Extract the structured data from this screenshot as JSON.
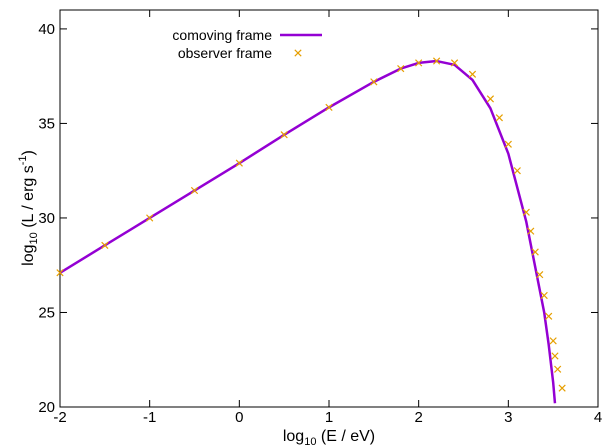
{
  "chart_data": {
    "type": "line",
    "xlabel": {
      "base": "log",
      "sub": "10",
      "rest": " (E / eV)"
    },
    "ylabel": {
      "base": "log",
      "sub": "10",
      "mid": " (L / erg s",
      "sup": "-1",
      "end": ")"
    },
    "xlim": [
      -2,
      4
    ],
    "ylim": [
      20,
      41
    ],
    "x_ticks": [
      -2,
      -1,
      0,
      1,
      2,
      3,
      4
    ],
    "y_ticks": [
      20,
      25,
      30,
      35,
      40
    ],
    "grid": false,
    "legend_position": "top-left",
    "series": [
      {
        "name": "comoving frame",
        "style": "line",
        "color": "#9400d3",
        "x": [
          -2.0,
          -1.5,
          -1.0,
          -0.5,
          0.0,
          0.5,
          1.0,
          1.5,
          1.8,
          2.0,
          2.2,
          2.4,
          2.6,
          2.8,
          3.0,
          3.2,
          3.4,
          3.45,
          3.5,
          3.52
        ],
        "y": [
          27.1,
          28.55,
          30.0,
          31.45,
          32.9,
          34.4,
          35.85,
          37.2,
          37.9,
          38.2,
          38.3,
          38.1,
          37.3,
          35.8,
          33.4,
          29.8,
          25.0,
          23.3,
          21.3,
          20.2
        ]
      },
      {
        "name": "observer frame",
        "style": "points",
        "marker": "x",
        "color": "#e69f00",
        "x": [
          -2.0,
          -1.5,
          -1.0,
          -0.5,
          0.0,
          0.5,
          1.0,
          1.5,
          1.8,
          2.0,
          2.2,
          2.4,
          2.6,
          2.8,
          2.9,
          3.0,
          3.1,
          3.2,
          3.25,
          3.3,
          3.35,
          3.4,
          3.45,
          3.5,
          3.52,
          3.55,
          3.6
        ],
        "y": [
          27.1,
          28.55,
          30.0,
          31.45,
          32.9,
          34.4,
          35.85,
          37.2,
          37.9,
          38.2,
          38.3,
          38.2,
          37.6,
          36.3,
          35.3,
          33.9,
          32.5,
          30.3,
          29.3,
          28.2,
          27.0,
          25.9,
          24.8,
          23.5,
          22.7,
          22.0,
          21.0
        ]
      }
    ]
  }
}
